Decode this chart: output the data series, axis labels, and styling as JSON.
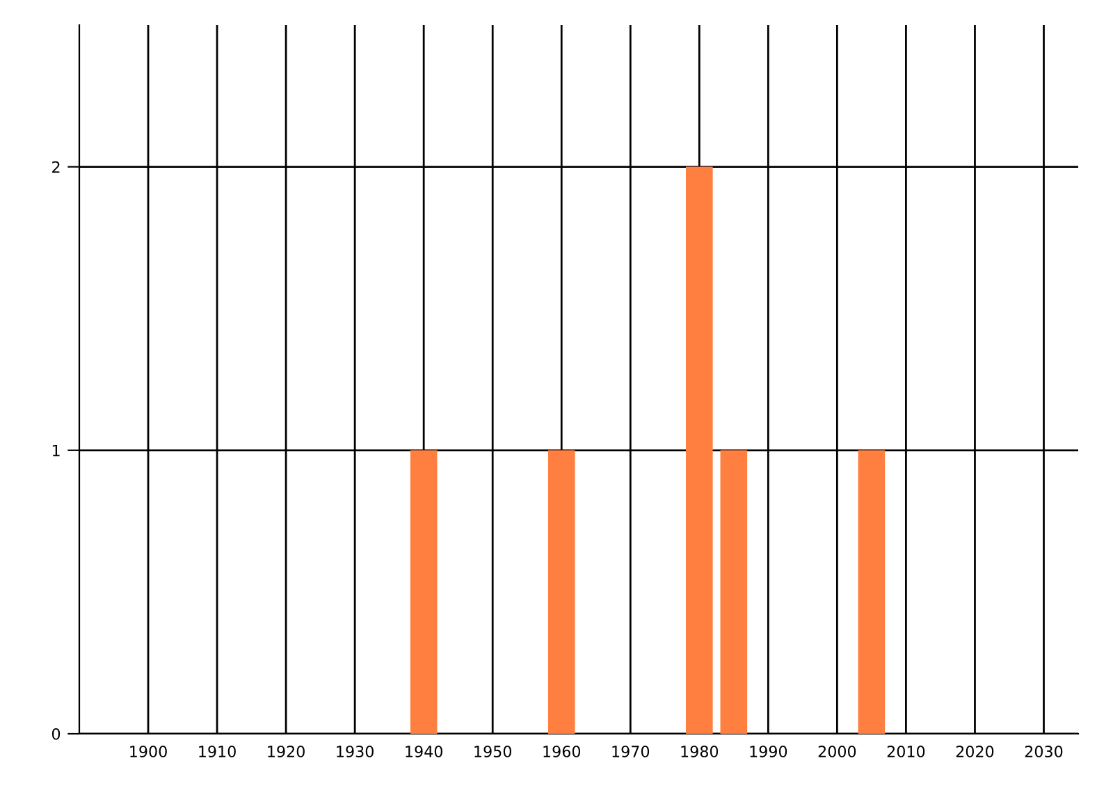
{
  "chart_data": {
    "type": "bar",
    "x": [
      1940,
      1960,
      1980,
      1985,
      2005
    ],
    "values": [
      1,
      1,
      2,
      1,
      1
    ],
    "color": "#ff7f40",
    "xlim": [
      1890,
      2035
    ],
    "xticks": [
      1900,
      1910,
      1920,
      1930,
      1940,
      1950,
      1960,
      1970,
      1980,
      1990,
      2000,
      2010,
      2020,
      2030
    ],
    "ylim": [
      0,
      2.5
    ],
    "yticks": [
      0,
      1,
      2
    ],
    "grid": true
  }
}
